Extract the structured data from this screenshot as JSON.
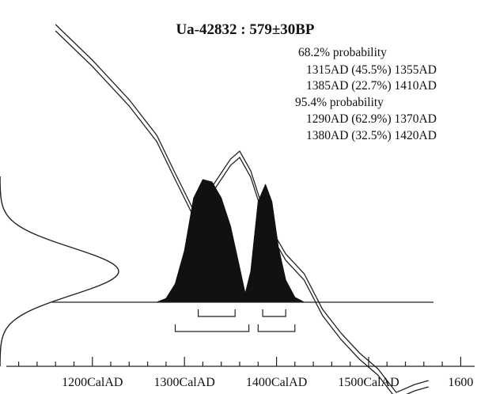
{
  "chart_data": {
    "type": "area",
    "title": "Ua-42832 : 579±30BP",
    "probability_text": [
      "68.2% probability",
      "1315AD (45.5%) 1355AD",
      "1385AD (22.7%) 1410AD",
      "95.4% probability",
      "1290AD (62.9%) 1370AD",
      "1380AD (32.5%) 1420AD"
    ],
    "x_axis": {
      "unit": "CalAD",
      "range": [
        1110,
        1610
      ],
      "major_ticks": [
        1200,
        1300,
        1400,
        1500,
        1600
      ],
      "tick_labels": [
        "1200CalAD",
        "1300CalAD",
        "1400CalAD",
        "1500CalAD",
        "1600"
      ],
      "minor_tick_step": 20
    },
    "calibration_curve_bp_center": [
      {
        "x": 1160,
        "y": 860
      },
      {
        "x": 1200,
        "y": 815
      },
      {
        "x": 1240,
        "y": 765
      },
      {
        "x": 1270,
        "y": 720
      },
      {
        "x": 1290,
        "y": 672
      },
      {
        "x": 1310,
        "y": 625
      },
      {
        "x": 1330,
        "y": 655
      },
      {
        "x": 1350,
        "y": 690
      },
      {
        "x": 1360,
        "y": 700
      },
      {
        "x": 1372,
        "y": 675
      },
      {
        "x": 1390,
        "y": 610
      },
      {
        "x": 1410,
        "y": 570
      },
      {
        "x": 1430,
        "y": 545
      },
      {
        "x": 1450,
        "y": 500
      },
      {
        "x": 1470,
        "y": 470
      },
      {
        "x": 1490,
        "y": 445
      },
      {
        "x": 1510,
        "y": 425
      },
      {
        "x": 1530,
        "y": 395
      },
      {
        "x": 1550,
        "y": 405
      },
      {
        "x": 1565,
        "y": 410
      }
    ],
    "radiocarbon_date": {
      "mean_bp": 579,
      "sigma_bp": 30
    },
    "probability_distribution": [
      {
        "x": 1270,
        "p": 0.0
      },
      {
        "x": 1280,
        "p": 0.03
      },
      {
        "x": 1290,
        "p": 0.15
      },
      {
        "x": 1300,
        "p": 0.42
      },
      {
        "x": 1310,
        "p": 0.85
      },
      {
        "x": 1320,
        "p": 1.0
      },
      {
        "x": 1330,
        "p": 0.98
      },
      {
        "x": 1340,
        "p": 0.85
      },
      {
        "x": 1350,
        "p": 0.62
      },
      {
        "x": 1360,
        "p": 0.28
      },
      {
        "x": 1366,
        "p": 0.07
      },
      {
        "x": 1372,
        "p": 0.25
      },
      {
        "x": 1380,
        "p": 0.82
      },
      {
        "x": 1388,
        "p": 0.96
      },
      {
        "x": 1395,
        "p": 0.82
      },
      {
        "x": 1402,
        "p": 0.45
      },
      {
        "x": 1410,
        "p": 0.18
      },
      {
        "x": 1420,
        "p": 0.04
      },
      {
        "x": 1430,
        "p": 0.0
      }
    ],
    "ranges_68": [
      [
        1315,
        1355
      ],
      [
        1385,
        1410
      ]
    ],
    "ranges_95": [
      [
        1290,
        1370
      ],
      [
        1380,
        1420
      ]
    ]
  }
}
